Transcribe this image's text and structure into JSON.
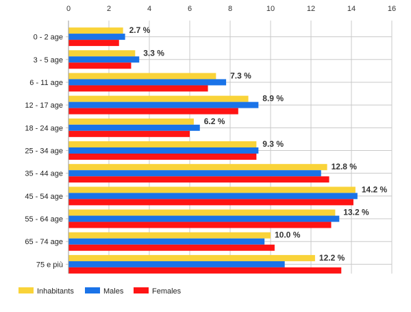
{
  "chart_data": {
    "type": "bar",
    "orientation": "horizontal",
    "categories": [
      "0 - 2 age",
      "3 - 5 age",
      "6 - 11 age",
      "12 - 17 age",
      "18 - 24 age",
      "25 - 34 age",
      "35 - 44 age",
      "45 - 54 age",
      "55 - 64 age",
      "65 - 74 age",
      "75 e più"
    ],
    "series": [
      {
        "name": "Inhabitants",
        "color": "#f9d339",
        "values": [
          2.7,
          3.3,
          7.3,
          8.9,
          6.2,
          9.3,
          12.8,
          14.2,
          13.2,
          10.0,
          12.2
        ]
      },
      {
        "name": "Males",
        "color": "#1a73e8",
        "values": [
          2.8,
          3.5,
          7.8,
          9.4,
          6.5,
          9.4,
          12.5,
          14.3,
          13.4,
          9.7,
          10.7
        ]
      },
      {
        "name": "Females",
        "color": "#ff1414",
        "values": [
          2.5,
          3.1,
          6.9,
          8.4,
          6.0,
          9.3,
          12.9,
          14.1,
          13.0,
          10.2,
          13.5
        ]
      }
    ],
    "data_labels": [
      "2.7 %",
      "3.3 %",
      "7.3 %",
      "8.9 %",
      "6.2 %",
      "9.3 %",
      "12.8 %",
      "14.2 %",
      "13.2 %",
      "10.0 %",
      "12.2 %"
    ],
    "xlim": [
      0,
      16
    ],
    "x_ticks": [
      "0",
      "2",
      "4",
      "6",
      "8",
      "10",
      "12",
      "14",
      "16"
    ],
    "grid": true,
    "legend_position": "bottom-left"
  }
}
